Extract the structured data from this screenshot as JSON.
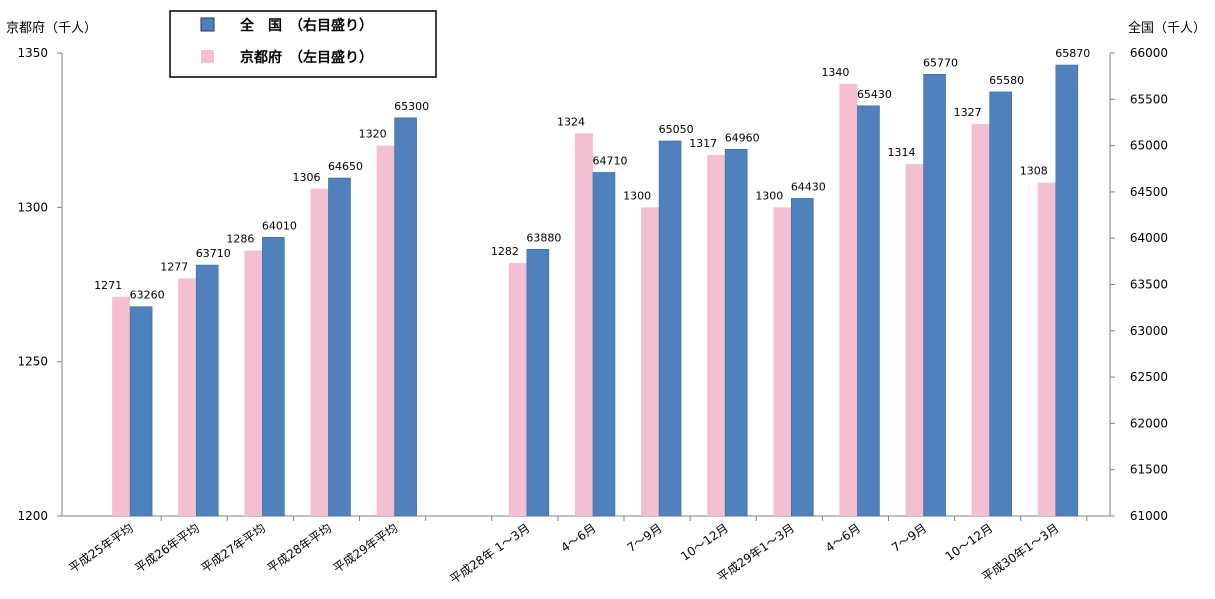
{
  "chart_data": {
    "type": "bar",
    "left_axis_unit": "京都府（千人）",
    "right_axis_unit": "全国（千人）",
    "ylim_left": [
      1200,
      1350
    ],
    "ylim_right": [
      61000,
      66000
    ],
    "yticks_left": [
      "1200",
      "1250",
      "1300",
      "1350"
    ],
    "yticks_right": [
      "61000",
      "61500",
      "62000",
      "62500",
      "63000",
      "63500",
      "64000",
      "64500",
      "65000",
      "65500",
      "66000"
    ],
    "categories": [
      "平成25年平均",
      "平成26年平均",
      "平成27年平均",
      "平成28年平均",
      "平成29年平均",
      "",
      "平成28年 1～3月",
      "4～6月",
      "7～9月",
      "10～12月",
      "平成29年1～3月",
      "4～6月",
      "7～9月",
      "10～12月",
      "平成30年1～3月"
    ],
    "series": [
      {
        "name": "京都府（左目盛り）",
        "axis": "left",
        "color": "#f4bfd0",
        "values": [
          1271,
          1277,
          1286,
          1306,
          1320,
          null,
          1282,
          1324,
          1300,
          1317,
          1300,
          1340,
          1314,
          1327,
          1308
        ],
        "labels": [
          "1271",
          "1277",
          "1286",
          "1306",
          "1320",
          "",
          "1282",
          "1324",
          "1300",
          "1317",
          "1300",
          "1340",
          "1314",
          "1327",
          "1308"
        ]
      },
      {
        "name": "全国（右目盛り）",
        "axis": "right",
        "color": "#4f81bd",
        "values": [
          63260,
          63710,
          64010,
          64650,
          65300,
          null,
          63880,
          64710,
          65050,
          64960,
          64430,
          65430,
          65770,
          65580,
          65870
        ],
        "labels": [
          "63260",
          "63710",
          "64010",
          "64650",
          "65300",
          "",
          "63880",
          "64710",
          "65050",
          "64960",
          "64430",
          "65430",
          "65770",
          "65580",
          "65870"
        ]
      }
    ],
    "legend": {
      "placement": "top-left",
      "items": [
        {
          "label": "全　国　（右目盛り）",
          "color": "#4f81bd"
        },
        {
          "label": "京都府　（左目盛り）",
          "color": "#f4bfd0"
        }
      ]
    },
    "grid": false
  }
}
